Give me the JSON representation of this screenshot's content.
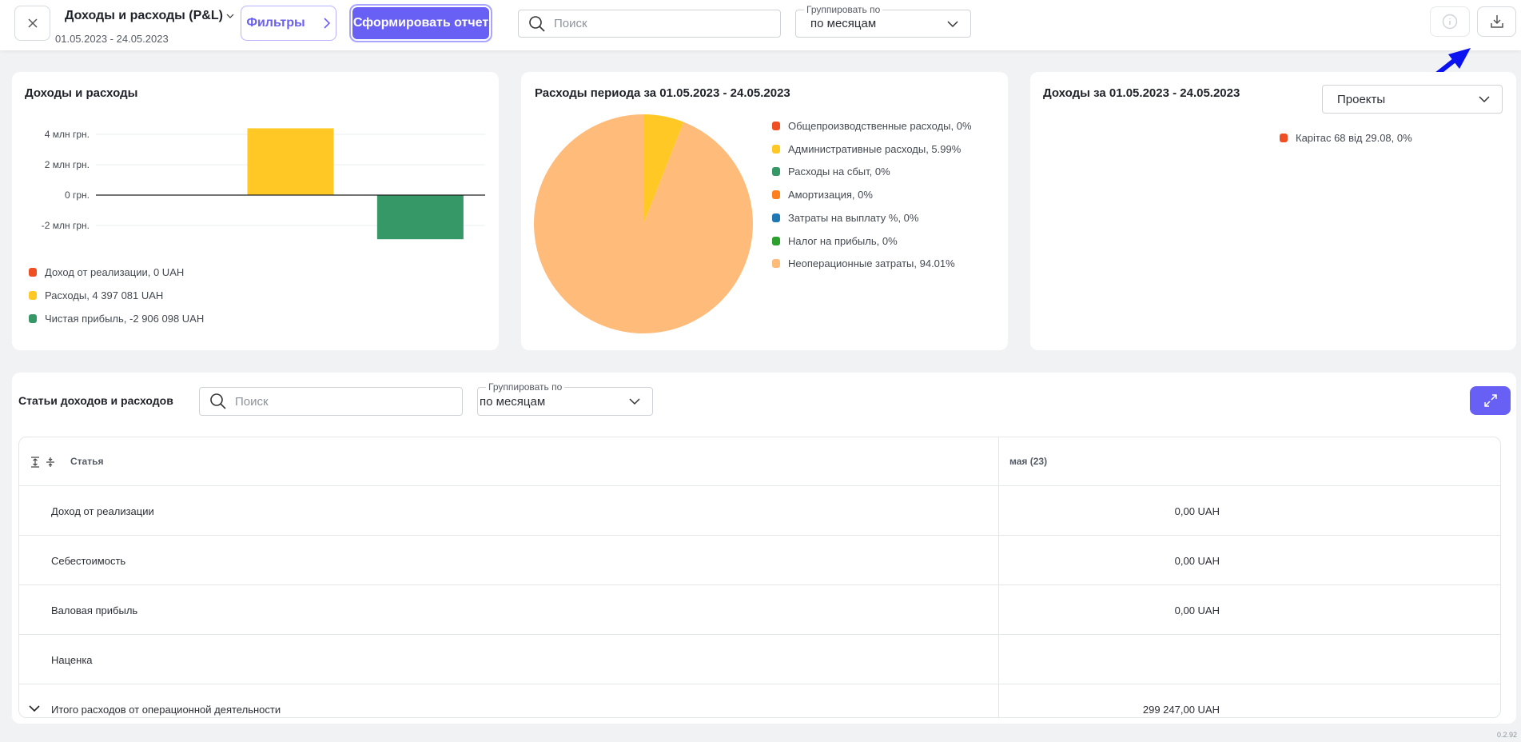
{
  "header": {
    "title": "Доходы и расходы (P&L)",
    "date_range": "01.05.2023 - 24.05.2023",
    "filters_label": "Фильтры",
    "submit_label": "Сформировать отчет",
    "search_placeholder": "Поиск",
    "group_by_label": "Группировать по",
    "group_by_value": "по месяцам"
  },
  "colors": {
    "accent": "#6860f5",
    "revenue": "#f04e23",
    "expenses": "#ffc824",
    "profit": "#369866",
    "non_operating": "#ffbb7a"
  },
  "chart_data": [
    {
      "type": "bar",
      "title": "Доходы и расходы",
      "categories": [
        "Доход от реализации",
        "Расходы",
        "Чистая прибыль"
      ],
      "values": [
        0,
        4397081,
        -2906098
      ],
      "y_ticks": [
        "4 млн грн.",
        "2 млн грн.",
        "0 грн.",
        "-2 млн грн."
      ],
      "y_tick_values": [
        4000000,
        2000000,
        0,
        -2000000
      ],
      "ylim": [
        -2900000,
        4600000
      ],
      "grid": true,
      "legend_position": "bottom",
      "legend": [
        {
          "label": "Доход от реализации, 0 UAH",
          "color": "#f04e23"
        },
        {
          "label": "Расходы, 4 397 081 UAH",
          "color": "#ffc824"
        },
        {
          "label": "Чистая прибыль, -2 906 098 UAH",
          "color": "#369866"
        }
      ]
    },
    {
      "type": "pie",
      "title": "Расходы периода за 01.05.2023 - 24.05.2023",
      "legend_position": "right",
      "slices": [
        {
          "label": "Общепроизводственные расходы, 0%",
          "value": 0,
          "color": "#f04e23"
        },
        {
          "label": "Административные расходы, 5.99%",
          "value": 5.99,
          "color": "#ffc824"
        },
        {
          "label": "Расходы на сбыт, 0%",
          "value": 0,
          "color": "#369866"
        },
        {
          "label": "Амортизация, 0%",
          "value": 0,
          "color": "#ff7f1e"
        },
        {
          "label": "Затраты на выплату %, 0%",
          "value": 0,
          "color": "#1f77b4"
        },
        {
          "label": "Налог на прибыль, 0%",
          "value": 0,
          "color": "#2ca02c"
        },
        {
          "label": "Неоперационные затраты, 94.01%",
          "value": 94.01,
          "color": "#ffbb7a"
        }
      ]
    },
    {
      "type": "pie",
      "title": "Доходы за 01.05.2023 - 24.05.2023",
      "select_value": "Проекты",
      "slices": [
        {
          "label": "Карітас 68 від 29.08, 0%",
          "value": 0,
          "color": "#f04e23"
        }
      ]
    }
  ],
  "table_section": {
    "title": "Статьи доходов и расходов",
    "search_placeholder": "Поиск",
    "group_by_label": "Группировать по",
    "group_by_value": "по месяцам",
    "columns": [
      "Статья",
      "мая (23)"
    ],
    "rows": [
      {
        "name": "Доход от реализации",
        "value": "0,00 UAH"
      },
      {
        "name": "Себестоимость",
        "value": "0,00 UAH"
      },
      {
        "name": "Валовая прибыль",
        "value": "0,00 UAH"
      },
      {
        "name": "Наценка",
        "value": ""
      },
      {
        "name": "Итого расходов от операционной деятельности",
        "value": "299 247,00 UAH",
        "expandable": true
      }
    ]
  },
  "version": "0.2.92"
}
